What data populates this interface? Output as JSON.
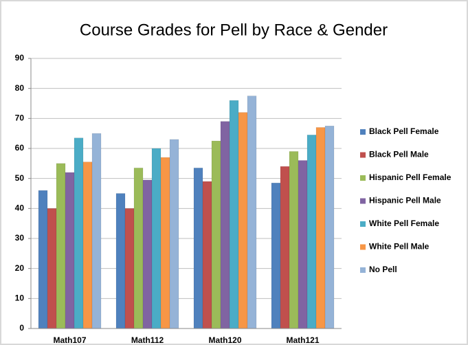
{
  "chart_data": {
    "type": "bar",
    "title": "Course Grades for Pell by Race & Gender",
    "categories": [
      "Math107",
      "Math112",
      "Math120",
      "Math121"
    ],
    "series": [
      {
        "name": "Black Pell Female",
        "color": "#4f81bd",
        "values": [
          46,
          45,
          53.5,
          48.5
        ]
      },
      {
        "name": "Black Pell Male",
        "color": "#c0504d",
        "values": [
          40,
          40,
          49,
          54
        ]
      },
      {
        "name": "Hispanic Pell Female",
        "color": "#9bbb59",
        "values": [
          55,
          53.5,
          62.5,
          59
        ]
      },
      {
        "name": "Hispanic Pell Male",
        "color": "#8064a2",
        "values": [
          52,
          49.5,
          69,
          56
        ]
      },
      {
        "name": "White Pell Female",
        "color": "#4bacc6",
        "values": [
          63.5,
          60,
          76,
          64.5
        ]
      },
      {
        "name": "White Pell Male",
        "color": "#f79646",
        "values": [
          55.5,
          57,
          72,
          67
        ]
      },
      {
        "name": "No Pell",
        "color": "#95b3d7",
        "values": [
          65,
          63,
          77.5,
          67.5
        ]
      }
    ],
    "ylim": [
      0,
      90
    ],
    "yticks": [
      0,
      10,
      20,
      30,
      40,
      50,
      60,
      70,
      80,
      90
    ],
    "grid": true,
    "legend": "right"
  }
}
